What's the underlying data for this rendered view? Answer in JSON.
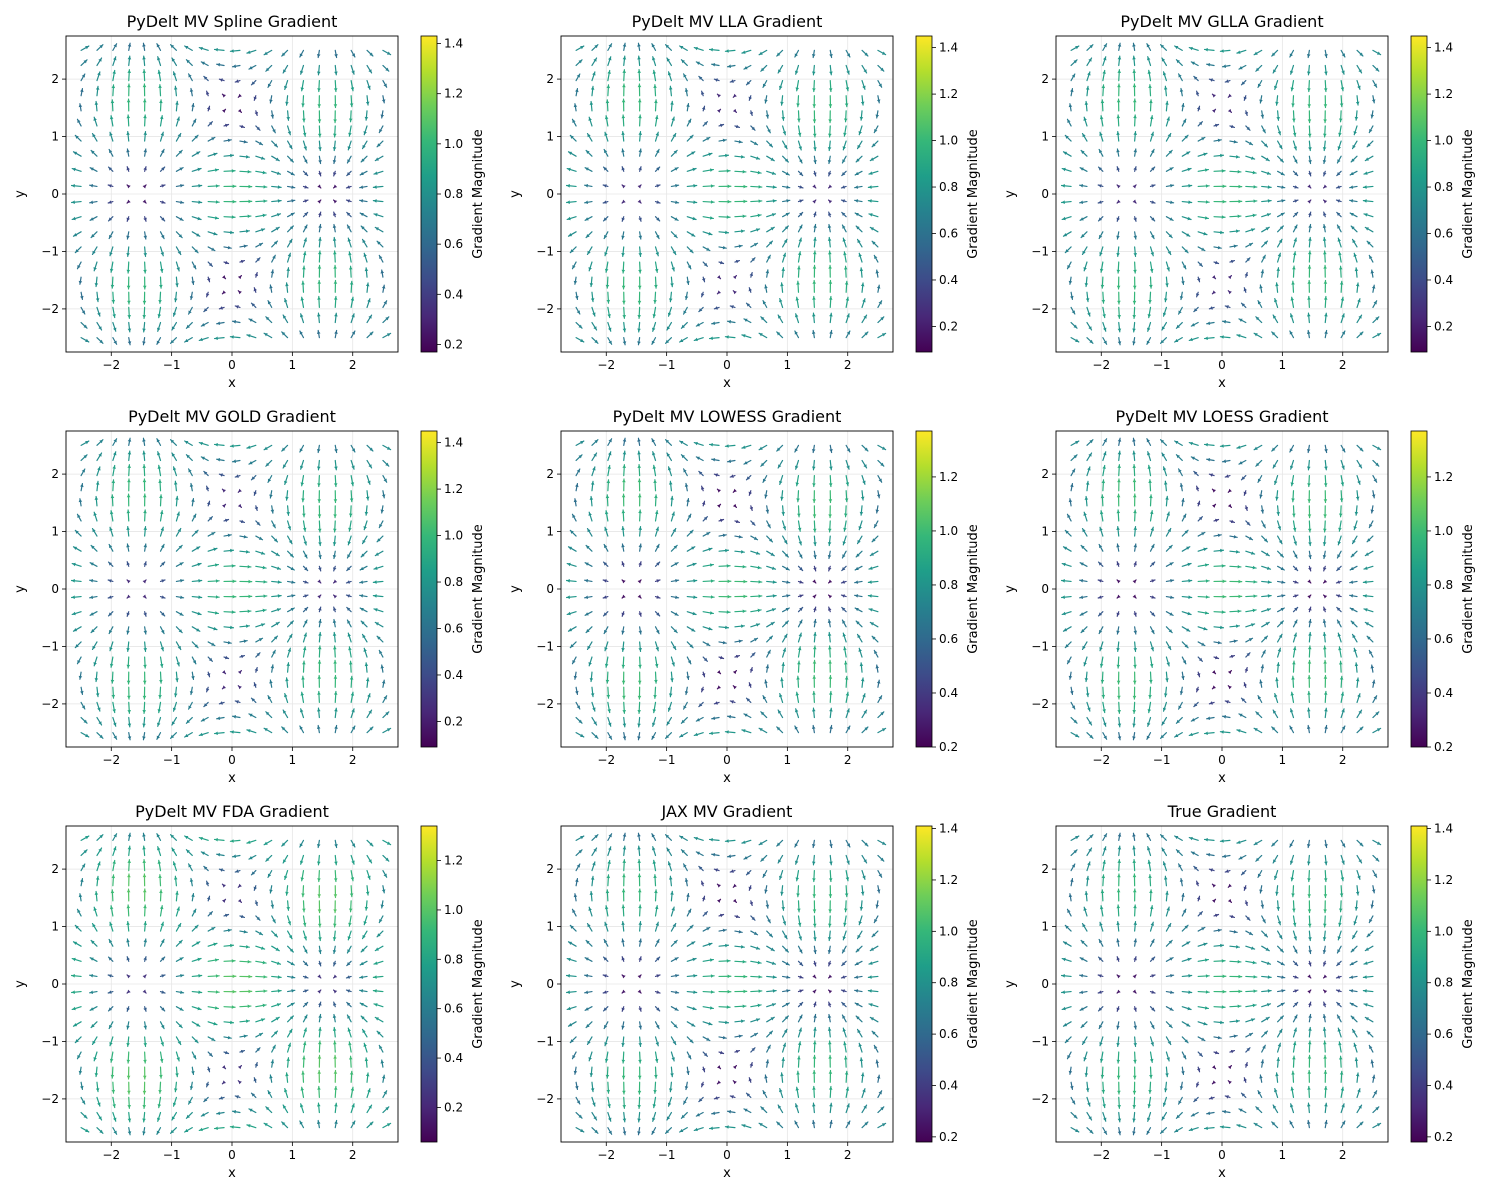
{
  "figure": {
    "colormap": "viridis",
    "grid": true
  },
  "chart_data": [
    {
      "type": "quiver",
      "title": "PyDelt MV Spline Gradient",
      "xlabel": "x",
      "ylabel": "y",
      "xlim": [
        -2.75,
        2.75
      ],
      "ylim": [
        -2.75,
        2.75
      ],
      "x_ticks": [
        -2,
        -1,
        0,
        1,
        2
      ],
      "y_ticks": [
        -2,
        -1,
        0,
        1,
        2
      ],
      "colorbar": {
        "label": "Gradient Magnitude",
        "range": [
          0.17,
          1.43
        ],
        "ticks": [
          0.2,
          0.4,
          0.6,
          0.8,
          1.0,
          1.2,
          1.4
        ]
      },
      "field": {
        "grid": {
          "x_range": [
            -2.5,
            2.5
          ],
          "y_range": [
            -2.5,
            2.5
          ],
          "n": 20
        }
      }
    },
    {
      "type": "quiver",
      "title": "PyDelt MV LLA Gradient",
      "xlabel": "x",
      "ylabel": "y",
      "xlim": [
        -2.75,
        2.75
      ],
      "ylim": [
        -2.75,
        2.75
      ],
      "x_ticks": [
        -2,
        -1,
        0,
        1,
        2
      ],
      "y_ticks": [
        -2,
        -1,
        0,
        1,
        2
      ],
      "colorbar": {
        "label": "Gradient Magnitude",
        "range": [
          0.09,
          1.45
        ],
        "ticks": [
          0.2,
          0.4,
          0.6,
          0.8,
          1.0,
          1.2,
          1.4
        ]
      },
      "field": {
        "grid": {
          "x_range": [
            -2.5,
            2.5
          ],
          "y_range": [
            -2.5,
            2.5
          ],
          "n": 20
        }
      }
    },
    {
      "type": "quiver",
      "title": "PyDelt MV GLLA Gradient",
      "xlabel": "x",
      "ylabel": "y",
      "xlim": [
        -2.75,
        2.75
      ],
      "ylim": [
        -2.75,
        2.75
      ],
      "x_ticks": [
        -2,
        -1,
        0,
        1,
        2
      ],
      "y_ticks": [
        -2,
        -1,
        0,
        1,
        2
      ],
      "colorbar": {
        "label": "Gradient Magnitude",
        "range": [
          0.09,
          1.45
        ],
        "ticks": [
          0.2,
          0.4,
          0.6,
          0.8,
          1.0,
          1.2,
          1.4
        ]
      },
      "field": {
        "grid": {
          "x_range": [
            -2.5,
            2.5
          ],
          "y_range": [
            -2.5,
            2.5
          ],
          "n": 20
        }
      }
    },
    {
      "type": "quiver",
      "title": "PyDelt MV GOLD Gradient",
      "xlabel": "x",
      "ylabel": "y",
      "xlim": [
        -2.75,
        2.75
      ],
      "ylim": [
        -2.75,
        2.75
      ],
      "x_ticks": [
        -2,
        -1,
        0,
        1,
        2
      ],
      "y_ticks": [
        -2,
        -1,
        0,
        1,
        2
      ],
      "colorbar": {
        "label": "Gradient Magnitude",
        "range": [
          0.09,
          1.45
        ],
        "ticks": [
          0.2,
          0.4,
          0.6,
          0.8,
          1.0,
          1.2,
          1.4
        ]
      },
      "field": {
        "grid": {
          "x_range": [
            -2.5,
            2.5
          ],
          "y_range": [
            -2.5,
            2.5
          ],
          "n": 20
        }
      }
    },
    {
      "type": "quiver",
      "title": "PyDelt MV LOWESS Gradient",
      "xlabel": "x",
      "ylabel": "y",
      "xlim": [
        -2.75,
        2.75
      ],
      "ylim": [
        -2.75,
        2.75
      ],
      "x_ticks": [
        -2,
        -1,
        0,
        1,
        2
      ],
      "y_ticks": [
        -2,
        -1,
        0,
        1,
        2
      ],
      "colorbar": {
        "label": "Gradient Magnitude",
        "range": [
          0.2,
          1.37
        ],
        "ticks": [
          0.2,
          0.4,
          0.6,
          0.8,
          1.0,
          1.2
        ]
      },
      "field": {
        "grid": {
          "x_range": [
            -2.5,
            2.5
          ],
          "y_range": [
            -2.5,
            2.5
          ],
          "n": 20
        }
      }
    },
    {
      "type": "quiver",
      "title": "PyDelt MV LOESS Gradient",
      "xlabel": "x",
      "ylabel": "y",
      "xlim": [
        -2.75,
        2.75
      ],
      "ylim": [
        -2.75,
        2.75
      ],
      "x_ticks": [
        -2,
        -1,
        0,
        1,
        2
      ],
      "y_ticks": [
        -2,
        -1,
        0,
        1,
        2
      ],
      "colorbar": {
        "label": "Gradient Magnitude",
        "range": [
          0.2,
          1.37
        ],
        "ticks": [
          0.2,
          0.4,
          0.6,
          0.8,
          1.0,
          1.2
        ]
      },
      "field": {
        "grid": {
          "x_range": [
            -2.5,
            2.5
          ],
          "y_range": [
            -2.5,
            2.5
          ],
          "n": 20
        }
      }
    },
    {
      "type": "quiver",
      "title": "PyDelt MV FDA Gradient",
      "xlabel": "x",
      "ylabel": "y",
      "xlim": [
        -2.75,
        2.75
      ],
      "ylim": [
        -2.75,
        2.75
      ],
      "x_ticks": [
        -2,
        -1,
        0,
        1,
        2
      ],
      "y_ticks": [
        -2,
        -1,
        0,
        1,
        2
      ],
      "colorbar": {
        "label": "Gradient Magnitude",
        "range": [
          0.06,
          1.34
        ],
        "ticks": [
          0.2,
          0.4,
          0.6,
          0.8,
          1.0,
          1.2
        ]
      },
      "field": {
        "grid": {
          "x_range": [
            -2.5,
            2.5
          ],
          "y_range": [
            -2.5,
            2.5
          ],
          "n": 20
        }
      }
    },
    {
      "type": "quiver",
      "title": "JAX MV Gradient",
      "xlabel": "x",
      "ylabel": "y",
      "xlim": [
        -2.75,
        2.75
      ],
      "ylim": [
        -2.75,
        2.75
      ],
      "x_ticks": [
        -2,
        -1,
        0,
        1,
        2
      ],
      "y_ticks": [
        -2,
        -1,
        0,
        1,
        2
      ],
      "colorbar": {
        "label": "Gradient Magnitude",
        "range": [
          0.18,
          1.41
        ],
        "ticks": [
          0.2,
          0.4,
          0.6,
          0.8,
          1.0,
          1.2,
          1.4
        ]
      },
      "field": {
        "grid": {
          "x_range": [
            -2.5,
            2.5
          ],
          "y_range": [
            -2.5,
            2.5
          ],
          "n": 20
        }
      }
    },
    {
      "type": "quiver",
      "title": "True Gradient",
      "xlabel": "x",
      "ylabel": "y",
      "xlim": [
        -2.75,
        2.75
      ],
      "ylim": [
        -2.75,
        2.75
      ],
      "x_ticks": [
        -2,
        -1,
        0,
        1,
        2
      ],
      "y_ticks": [
        -2,
        -1,
        0,
        1,
        2
      ],
      "colorbar": {
        "label": "Gradient Magnitude",
        "range": [
          0.18,
          1.41
        ],
        "ticks": [
          0.2,
          0.4,
          0.6,
          0.8,
          1.0,
          1.2,
          1.4
        ]
      },
      "field": {
        "grid": {
          "x_range": [
            -2.5,
            2.5
          ],
          "y_range": [
            -2.5,
            2.5
          ],
          "n": 20
        }
      }
    }
  ]
}
